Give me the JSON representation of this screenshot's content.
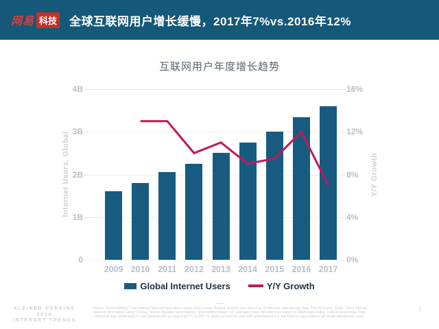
{
  "header": {
    "logo_brand": "网易",
    "logo_sub": "科技",
    "title": "全球互联网用户增长缓慢，2017年7%vs.2016年12%"
  },
  "chart_data": {
    "type": "bar",
    "title": "互联网用户年度增长趋势",
    "categories": [
      "2009",
      "2010",
      "2011",
      "2012",
      "2013",
      "2014",
      "2015",
      "2016",
      "2017"
    ],
    "series": [
      {
        "name": "Global Internet Users",
        "type": "bar",
        "axis": "left",
        "values": [
          1.6,
          1.8,
          2.05,
          2.25,
          2.5,
          2.75,
          3.0,
          3.35,
          3.6
        ],
        "unit": "B",
        "color": "#175c80"
      },
      {
        "name": "Y/Y Growth",
        "type": "line",
        "axis": "right",
        "values": [
          null,
          13,
          13,
          10,
          11,
          9,
          9.5,
          12,
          7
        ],
        "unit": "%",
        "color": "#c2175b"
      }
    ],
    "left_axis": {
      "label": "Internet Users, Global",
      "ticks": [
        "4B",
        "3B",
        "2B",
        "1B",
        "0"
      ],
      "min": 0,
      "max": 4
    },
    "right_axis": {
      "label": "Y/Y Growth",
      "ticks": [
        "16%",
        "12%",
        "8%",
        "4%",
        "0%"
      ],
      "min": 0,
      "max": 16
    },
    "grid": "horizontal",
    "legend_position": "bottom"
  },
  "footer": {
    "brand_lines": [
      "KLEINER PERKINS",
      "2018",
      "INTERNET TRENDS"
    ],
    "source_text": "Source: United Nations / International Telecommunications Union, USA Census Bureau. Internet user data is as of mid-year. Internet user data: Pew Research (USA), China Internet Network Information Center (China), Islamic Republic News Agency / InternetWorldStats / KP estimates (Iran), KP estimates based on IAMAI data (India), & APJII (Indonesia). Note: Historical data (particularly in Sub-Saharan Africa) revised by ITU in 2017 to better account for dual-SIM subscriptions (i.e. two Internet subscriptions per single smartphone user).",
    "page_number": "7"
  },
  "colors": {
    "header_bg": "#155878",
    "logo_red": "#c5302c",
    "bar": "#175c80",
    "line": "#c2175b",
    "axis_text": "#b9bfc6",
    "title_text": "#566470"
  }
}
